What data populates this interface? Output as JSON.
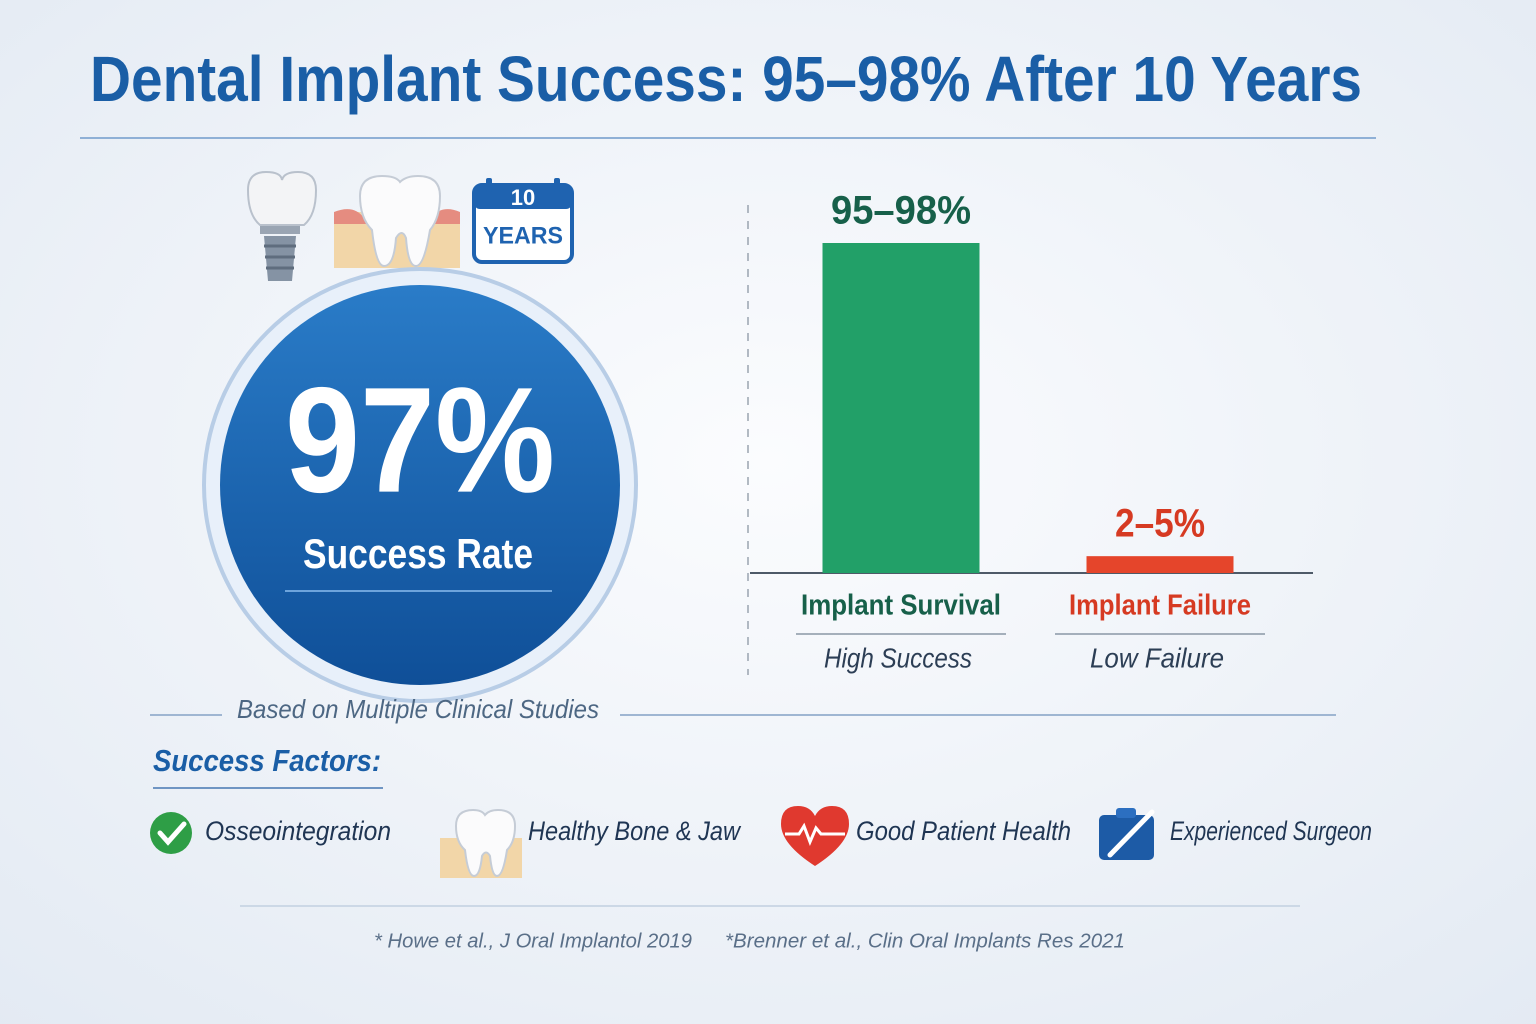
{
  "header": {
    "title": "Dental Implant Success: 95–98% After 10 Years"
  },
  "icons": {
    "calendar_number": "10",
    "calendar_label": "YEARS"
  },
  "hero": {
    "value": "97%",
    "label": "Success Rate",
    "note": "Based on Multiple Clinical Studies"
  },
  "chart_data": {
    "type": "bar",
    "categories": [
      "Implant Survival",
      "Implant Failure"
    ],
    "sublabels": [
      "High Success",
      "Low Failure"
    ],
    "values": [
      98,
      5
    ],
    "value_labels": [
      "95–98%",
      "2–5%"
    ],
    "colors": [
      "#22a068",
      "#e5452b"
    ],
    "label_colors": [
      "#17604a",
      "#d63a22"
    ]
  },
  "factors": {
    "heading": "Success Factors:",
    "items": [
      "Osseointegration",
      "Healthy Bone & Jaw",
      "Good Patient Health",
      "Experienced Surgeon"
    ]
  },
  "footnotes": [
    "* Howe et al., J Oral Implantol 2019",
    "*Brenner et al., Clin Oral Implants Res 2021"
  ]
}
